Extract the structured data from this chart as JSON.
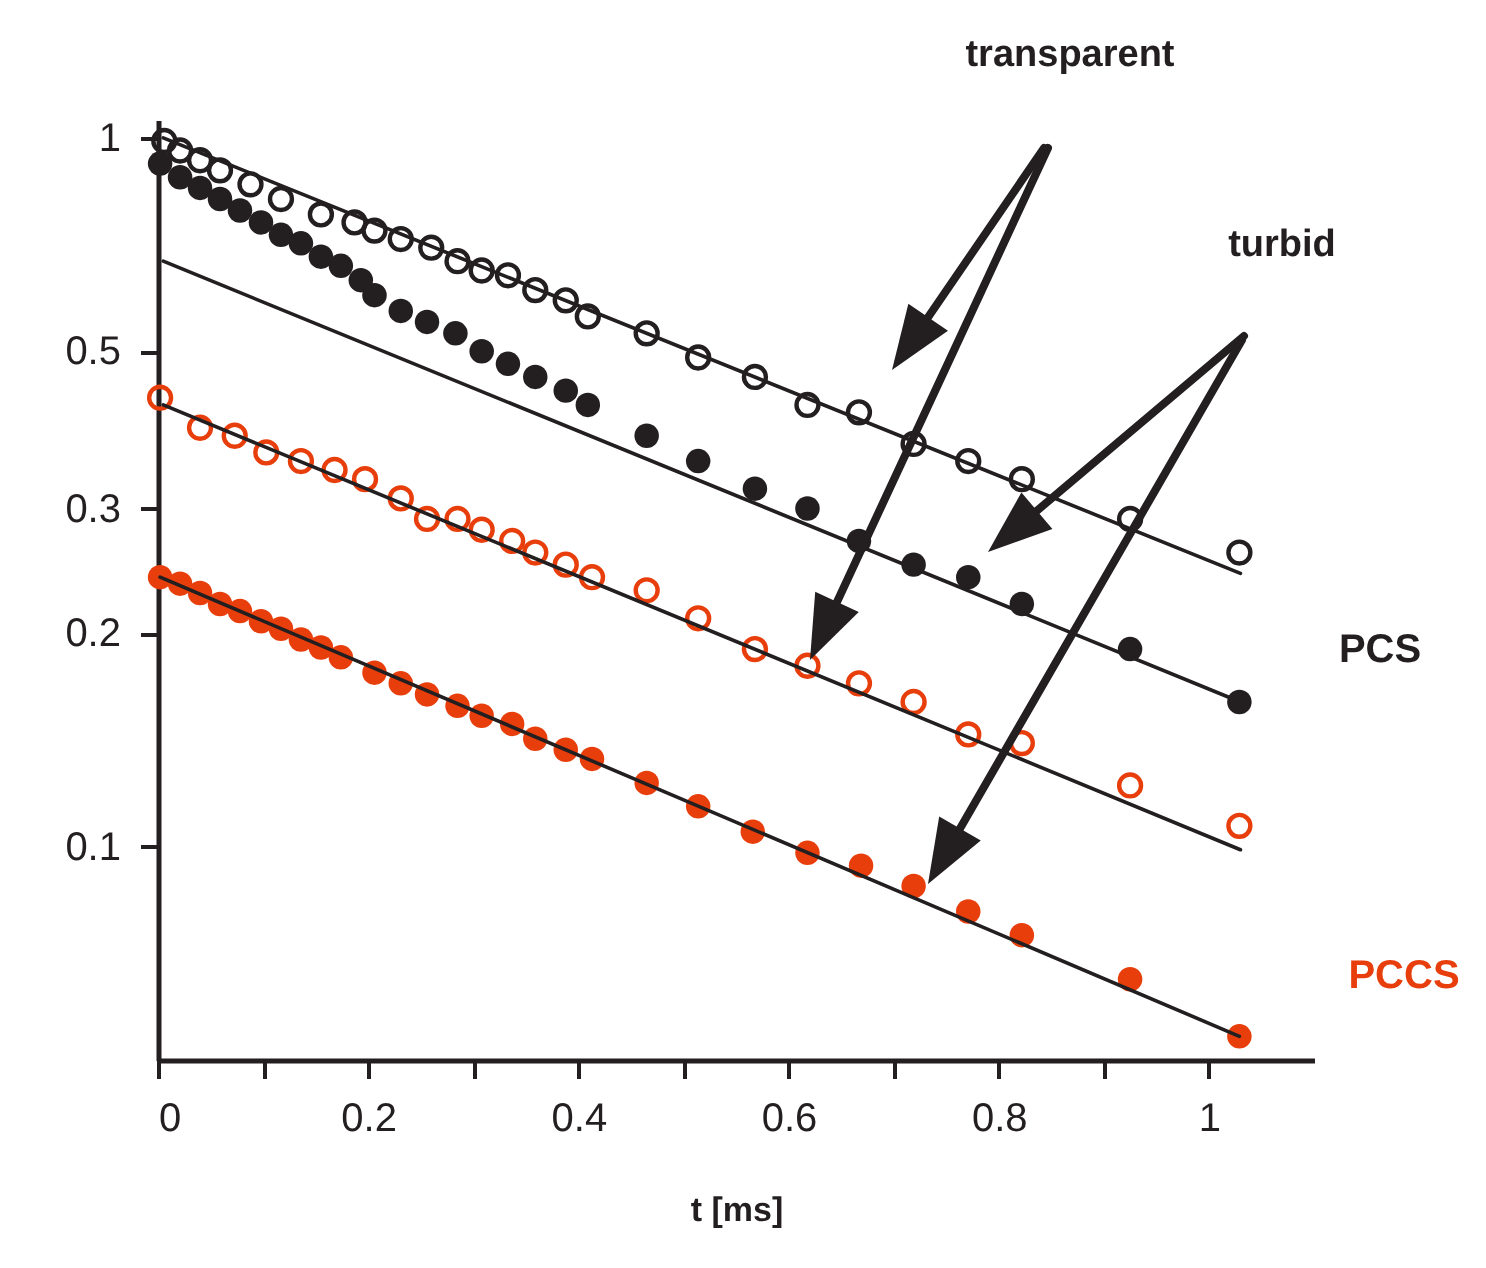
{
  "chart_data": {
    "type": "scatter",
    "xlabel": "t [ms]",
    "xlim": [
      0,
      1.1
    ],
    "ylim": [
      0.05,
      1.06
    ],
    "log": true,
    "grid": false,
    "xticks": [
      0,
      {
        "value": 0.1,
        "label": null
      },
      0.2,
      {
        "value": 0.3,
        "label": null
      },
      0.4,
      {
        "value": 0.5,
        "label": null
      },
      0.6,
      {
        "value": 0.7,
        "label": null
      },
      0.8,
      {
        "value": 0.9,
        "label": null
      },
      1
    ],
    "yticks": [
      0.1,
      0.2,
      0.3,
      0.5,
      1
    ],
    "annotations": [
      "transparent",
      "turbid",
      "PCS",
      "PCCS"
    ],
    "series": [
      {
        "type": "scatter",
        "marker": "circle-open",
        "color": "#231f20",
        "x": [
          0.006,
          0.021,
          0.04,
          0.059,
          0.088,
          0.117,
          0.155,
          0.187,
          0.206,
          0.231,
          0.26,
          0.285,
          0.308,
          0.333,
          0.359,
          0.388,
          0.409,
          0.465,
          0.514,
          0.568,
          0.618,
          0.667,
          0.719,
          0.771,
          0.822,
          0.925,
          1.029
        ],
        "values": [
          0.99,
          0.96,
          0.93,
          0.9,
          0.86,
          0.82,
          0.78,
          0.76,
          0.74,
          0.72,
          0.7,
          0.67,
          0.65,
          0.64,
          0.61,
          0.59,
          0.56,
          0.53,
          0.49,
          0.46,
          0.42,
          0.41,
          0.37,
          0.35,
          0.33,
          0.29,
          0.26
        ]
      },
      {
        "type": "scatter",
        "marker": "circle",
        "color": "#231f20",
        "x": [
          0.002,
          0.021,
          0.04,
          0.059,
          0.078,
          0.098,
          0.117,
          0.136,
          0.155,
          0.174,
          0.193,
          0.206,
          0.231,
          0.256,
          0.283,
          0.308,
          0.333,
          0.359,
          0.388,
          0.409,
          0.465,
          0.514,
          0.568,
          0.618,
          0.667,
          0.719,
          0.771,
          0.822,
          0.925,
          1.029
        ],
        "values": [
          0.92,
          0.88,
          0.85,
          0.82,
          0.79,
          0.76,
          0.73,
          0.71,
          0.68,
          0.66,
          0.63,
          0.6,
          0.57,
          0.55,
          0.53,
          0.5,
          0.48,
          0.46,
          0.44,
          0.42,
          0.38,
          0.35,
          0.32,
          0.3,
          0.27,
          0.25,
          0.24,
          0.22,
          0.19,
          0.16
        ]
      },
      {
        "type": "scatter",
        "marker": "circle-open",
        "color": "#e83e0c",
        "x": [
          0.002,
          0.04,
          0.073,
          0.103,
          0.136,
          0.168,
          0.197,
          0.231,
          0.256,
          0.285,
          0.308,
          0.337,
          0.359,
          0.388,
          0.413,
          0.465,
          0.514,
          0.568,
          0.618,
          0.667,
          0.719,
          0.771,
          0.822,
          0.925,
          1.029
        ],
        "values": [
          0.43,
          0.39,
          0.38,
          0.36,
          0.35,
          0.34,
          0.33,
          0.31,
          0.29,
          0.29,
          0.28,
          0.27,
          0.26,
          0.25,
          0.24,
          0.23,
          0.21,
          0.19,
          0.18,
          0.17,
          0.16,
          0.144,
          0.14,
          0.122,
          0.107
        ]
      },
      {
        "type": "scatter",
        "marker": "circle",
        "color": "#e83e0c",
        "x": [
          0.002,
          0.021,
          0.04,
          0.059,
          0.078,
          0.098,
          0.117,
          0.136,
          0.155,
          0.174,
          0.206,
          0.231,
          0.256,
          0.285,
          0.308,
          0.337,
          0.359,
          0.388,
          0.413,
          0.465,
          0.514,
          0.566,
          0.618,
          0.669,
          0.719,
          0.771,
          0.822,
          0.925,
          1.029
        ],
        "values": [
          0.24,
          0.235,
          0.228,
          0.22,
          0.215,
          0.208,
          0.203,
          0.196,
          0.191,
          0.185,
          0.176,
          0.17,
          0.164,
          0.158,
          0.153,
          0.149,
          0.142,
          0.137,
          0.133,
          0.123,
          0.114,
          0.105,
          0.098,
          0.094,
          0.088,
          0.081,
          0.075,
          0.065,
          0.054
        ]
      },
      {
        "type": "line",
        "marker": "none",
        "color": "#231f20",
        "x": [
          0.005,
          1.03
        ],
        "values": [
          1.0,
          0.243
        ]
      },
      {
        "type": "line",
        "marker": "none",
        "color": "#231f20",
        "x": [
          0.005,
          1.03
        ],
        "values": [
          0.67,
          0.16
        ]
      },
      {
        "type": "line",
        "marker": "none",
        "color": "#231f20",
        "x": [
          0.005,
          1.03
        ],
        "values": [
          0.42,
          0.099
        ]
      },
      {
        "type": "line",
        "marker": "none",
        "color": "#231f20",
        "x": [
          0.002,
          1.029
        ],
        "values": [
          0.24,
          0.054
        ]
      }
    ]
  }
}
